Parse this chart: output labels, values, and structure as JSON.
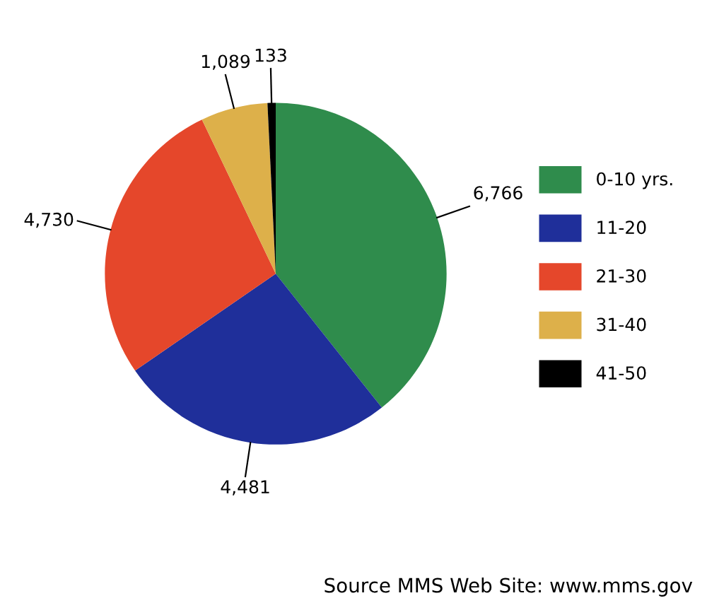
{
  "chart_data": {
    "type": "pie",
    "categories": [
      "0-10 yrs.",
      "11-20",
      "21-30",
      "31-40",
      "41-50"
    ],
    "values": [
      6766,
      4481,
      4730,
      1089,
      133
    ],
    "value_labels": [
      "6,766",
      "4,481",
      "4,730",
      "1,089",
      "133"
    ],
    "colors": [
      "#2f8c4c",
      "#1f2f9a",
      "#e5472b",
      "#ddb04a",
      "#000000"
    ],
    "legend": "right",
    "annotations": [
      "Source MMS Web Site: www.mms.gov"
    ]
  }
}
